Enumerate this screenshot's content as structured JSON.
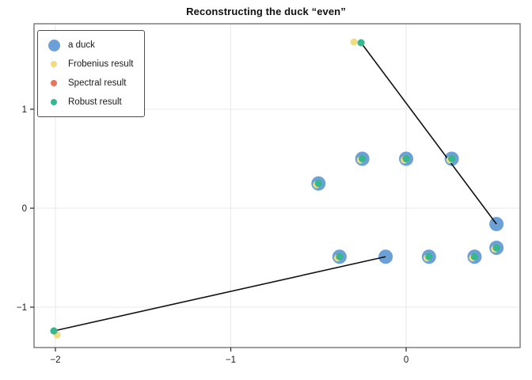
{
  "chart_data": {
    "type": "scatter",
    "title": "Reconstructing the duck “even”",
    "xlabel": "",
    "ylabel": "",
    "xlim": [
      -2.122,
      0.65
    ],
    "ylim": [
      -1.408,
      1.864
    ],
    "grid": true,
    "legend_position": "top-left",
    "x_ticks": [
      {
        "value": -2,
        "label": "−2"
      },
      {
        "value": -1,
        "label": "−1"
      },
      {
        "value": 0,
        "label": "0"
      }
    ],
    "y_ticks": [
      {
        "value": -1,
        "label": "−1"
      },
      {
        "value": 0,
        "label": "0"
      },
      {
        "value": 1,
        "label": "1"
      }
    ],
    "legend": [
      {
        "label": "a duck",
        "color": "#6BA1D6",
        "marker": "circle-large"
      },
      {
        "label": "Frobenius result",
        "color": "#F0DC83",
        "marker": "circle-small"
      },
      {
        "label": "Spectral result",
        "color": "#E8745B",
        "marker": "circle-small"
      },
      {
        "label": "Robust result",
        "color": "#33B890",
        "marker": "circle-small"
      }
    ],
    "colors": {
      "duck": "#6BA1D6",
      "frobenius": "#F0DC83",
      "spectral": "#E8745B",
      "robust": "#33B890",
      "error_line": "#111111",
      "gridline": "#e9e9e9",
      "plot_border": "#7f7f7f"
    },
    "series": [
      {
        "name": "a duck",
        "color": "#6BA1D6",
        "marker_radius": 9,
        "points": [
          [
            -0.5,
            0.25
          ],
          [
            -0.25,
            0.5
          ],
          [
            0,
            0.5
          ],
          [
            0.26,
            0.5
          ],
          [
            0.515,
            -0.16
          ],
          [
            0.515,
            -0.4
          ],
          [
            0.39,
            -0.49
          ],
          [
            0.13,
            -0.49
          ],
          [
            -0.117,
            -0.49
          ],
          [
            -0.38,
            -0.49
          ]
        ]
      },
      {
        "name": "Frobenius result",
        "color": "#F0DC83",
        "marker_radius": 4.5,
        "points": [
          [
            -0.511,
            0.238
          ],
          [
            -0.261,
            0.488
          ],
          [
            -0.011,
            0.488
          ],
          [
            0.249,
            0.488
          ],
          [
            0.504,
            -0.412
          ],
          [
            0.379,
            -0.502
          ],
          [
            0.119,
            -0.502
          ],
          [
            -0.391,
            -0.502
          ],
          [
            -0.298,
            1.68
          ],
          [
            -1.991,
            -1.28
          ]
        ]
      },
      {
        "name": "Spectral result",
        "color": "#E8745B",
        "marker_radius": 4.5,
        "points": [
          [
            -0.5,
            0.25
          ],
          [
            -0.25,
            0.5
          ],
          [
            0,
            0.5
          ],
          [
            0.26,
            0.5
          ],
          [
            0.515,
            -0.4
          ],
          [
            0.39,
            -0.49
          ],
          [
            0.13,
            -0.49
          ],
          [
            -0.38,
            -0.49
          ],
          [
            -0.257,
            1.672
          ],
          [
            -2.009,
            -1.24
          ]
        ]
      },
      {
        "name": "Robust result",
        "color": "#33B890",
        "marker_radius": 4.5,
        "points": [
          [
            -0.5,
            0.25
          ],
          [
            -0.25,
            0.5
          ],
          [
            0,
            0.5
          ],
          [
            0.26,
            0.5
          ],
          [
            0.515,
            -0.4
          ],
          [
            0.39,
            -0.49
          ],
          [
            0.13,
            -0.49
          ],
          [
            -0.38,
            -0.49
          ],
          [
            -0.257,
            1.672
          ],
          [
            -2.009,
            -1.24
          ]
        ]
      }
    ],
    "error_lines": [
      {
        "from": [
          -0.257,
          1.672
        ],
        "to": [
          0.515,
          -0.16
        ]
      },
      {
        "from": [
          -2.009,
          -1.24
        ],
        "to": [
          -0.117,
          -0.49
        ]
      }
    ]
  }
}
